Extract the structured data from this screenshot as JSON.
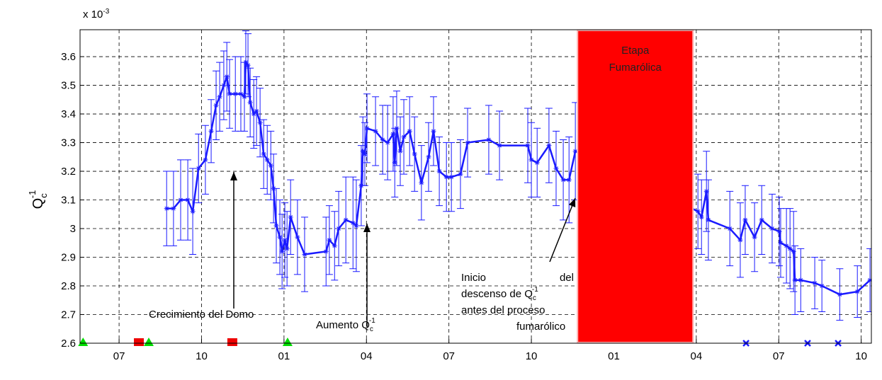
{
  "chart_data": {
    "type": "errorbar",
    "exponent_label": {
      "base": "x 10",
      "sup": "-3"
    },
    "ylabel": {
      "base": "Q",
      "sub": "c",
      "sup": "-1"
    },
    "xlim": [
      -1.42,
      27.37
    ],
    "ylim": [
      2.6,
      3.694
    ],
    "xticks": [
      {
        "value": 0,
        "label": "07"
      },
      {
        "value": 3,
        "label": "10"
      },
      {
        "value": 6,
        "label": "01"
      },
      {
        "value": 9,
        "label": "04"
      },
      {
        "value": 12,
        "label": "07"
      },
      {
        "value": 15,
        "label": "10"
      },
      {
        "value": 18,
        "label": "01"
      },
      {
        "value": 21,
        "label": "04"
      },
      {
        "value": 24,
        "label": "07"
      },
      {
        "value": 27,
        "label": "10"
      }
    ],
    "yticks": [
      2.6,
      2.7,
      2.8,
      2.9,
      3,
      3.1,
      3.2,
      3.3,
      3.4,
      3.5,
      3.6
    ],
    "grid": true,
    "series": [
      {
        "color": "#1a1aff",
        "x": [
          1.73,
          1.98,
          2.24,
          2.5,
          2.68,
          2.89,
          3.14,
          3.35,
          3.53,
          3.66,
          3.81,
          3.92,
          4.02,
          4.23,
          4.43,
          4.56,
          4.61,
          4.69,
          4.77,
          4.9,
          5.0,
          5.13,
          5.26,
          5.39,
          5.52,
          5.62,
          5.72,
          5.85,
          5.93,
          6.03,
          6.11,
          6.24,
          6.49,
          6.75,
          7.53,
          7.65,
          7.84,
          7.99,
          8.25,
          8.51,
          8.63,
          8.81,
          8.87,
          8.94,
          9.02,
          9.33,
          9.59,
          9.77,
          9.97,
          10.03,
          10.1,
          10.23,
          10.36,
          10.57,
          10.75,
          11.0,
          11.26,
          11.44,
          11.65,
          11.91,
          12.09,
          12.42,
          12.68,
          13.45,
          13.84,
          14.87,
          15.0,
          15.21,
          15.64,
          15.9,
          16.16,
          16.37,
          16.6,
          21.06,
          21.19,
          21.37,
          21.44,
          22.22,
          22.6,
          22.78,
          23.12,
          23.38,
          23.76,
          24.02,
          24.07,
          24.28,
          24.41,
          24.54,
          24.59,
          24.8,
          25.31,
          25.57,
          26.22,
          26.86,
          27.32
        ],
        "values": [
          3.07,
          3.07,
          3.1,
          3.1,
          3.06,
          3.21,
          3.24,
          3.34,
          3.43,
          3.46,
          3.5,
          3.53,
          3.47,
          3.47,
          3.47,
          3.46,
          3.58,
          3.57,
          3.44,
          3.4,
          3.41,
          3.37,
          3.26,
          3.24,
          3.22,
          3.14,
          3.01,
          2.97,
          2.92,
          2.96,
          2.93,
          3.04,
          2.97,
          2.91,
          2.92,
          2.96,
          2.94,
          3.0,
          3.03,
          3.02,
          3.01,
          3.15,
          3.27,
          3.26,
          3.35,
          3.34,
          3.31,
          3.3,
          3.33,
          3.23,
          3.35,
          3.27,
          3.32,
          3.34,
          3.26,
          3.16,
          3.25,
          3.34,
          3.2,
          3.18,
          3.18,
          3.19,
          3.3,
          3.31,
          3.29,
          3.29,
          3.24,
          3.23,
          3.29,
          3.21,
          3.17,
          3.17,
          3.27,
          3.06,
          3.04,
          3.13,
          3.03,
          3.0,
          2.96,
          3.03,
          2.97,
          3.03,
          3.0,
          2.99,
          2.95,
          2.94,
          2.93,
          2.92,
          2.82,
          2.82,
          2.81,
          2.8,
          2.77,
          2.78,
          2.82
        ],
        "errors": [
          0.13,
          0.13,
          0.14,
          0.14,
          0.15,
          0.12,
          0.12,
          0.11,
          0.12,
          0.12,
          0.12,
          0.12,
          0.12,
          0.13,
          0.13,
          0.12,
          0.11,
          0.11,
          0.12,
          0.12,
          0.12,
          0.12,
          0.12,
          0.12,
          0.12,
          0.12,
          0.13,
          0.13,
          0.13,
          0.13,
          0.13,
          0.13,
          0.13,
          0.13,
          0.12,
          0.12,
          0.12,
          0.13,
          0.15,
          0.16,
          0.16,
          0.14,
          0.12,
          0.11,
          0.12,
          0.12,
          0.12,
          0.13,
          0.13,
          0.12,
          0.13,
          0.12,
          0.13,
          0.12,
          0.13,
          0.13,
          0.12,
          0.12,
          0.12,
          0.12,
          0.12,
          0.12,
          0.12,
          0.12,
          0.12,
          0.13,
          0.13,
          0.12,
          0.13,
          0.13,
          0.14,
          0.15,
          0.17,
          0.13,
          0.13,
          0.14,
          0.14,
          0.13,
          0.13,
          0.12,
          0.12,
          0.12,
          0.12,
          0.12,
          0.12,
          0.13,
          0.14,
          0.14,
          0.12,
          0.11,
          0.09,
          0.09,
          0.09,
          0.09,
          0.11
        ]
      }
    ],
    "markers": [
      {
        "shape": "triangle",
        "color": "#00dd00",
        "x": [
          -1.31,
          1.08,
          6.13
        ],
        "y": [
          2.6,
          2.6,
          2.6
        ]
      },
      {
        "shape": "square",
        "color": "#ee0000",
        "x": [
          0.72,
          4.12
        ],
        "y": [
          2.6,
          2.6
        ]
      },
      {
        "shape": "cross",
        "color": "#1a1aff",
        "x": [
          22.81,
          25.05,
          26.16
        ],
        "y": [
          2.6,
          2.6,
          2.6
        ]
      }
    ],
    "shaded_region": {
      "x": [
        16.68,
        20.88
      ],
      "color": "#ff0000",
      "label": [
        "Etapa",
        "Fumarólica"
      ]
    },
    "annotations": {
      "domo": "Crecimiento del Domo",
      "aumento": {
        "base": "Aumento Q",
        "sub": "c",
        "sup": "-1"
      },
      "inicio": {
        "line1": [
          "Inicio",
          "del"
        ],
        "line2": {
          "base": "descenso de Q",
          "sub": "c",
          "sup": "-1"
        },
        "line3": "antes del proceso",
        "line4": "fumarólico"
      }
    }
  }
}
